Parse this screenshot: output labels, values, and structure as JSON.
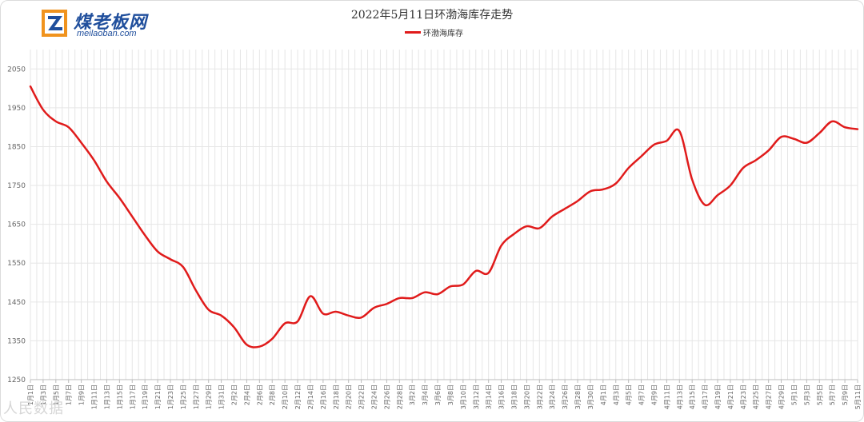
{
  "logo": {
    "name_cn": "煤老板网",
    "name_en": "meilaoban.com"
  },
  "watermark": "人民数据",
  "chart_data": {
    "type": "line",
    "title": "2022年5月11日环渤海库存走势",
    "xlabel": "",
    "ylabel": "",
    "ylim": [
      1250,
      2100
    ],
    "yticks": [
      1250,
      1350,
      1450,
      1550,
      1650,
      1750,
      1850,
      1950,
      2050
    ],
    "grid": true,
    "legend_position": "top-center",
    "series_color": "#e01b1b",
    "categories": [
      "1月1日",
      "1月3日",
      "1月5日",
      "1月7日",
      "1月9日",
      "1月11日",
      "1月13日",
      "1月15日",
      "1月17日",
      "1月19日",
      "1月21日",
      "1月23日",
      "1月25日",
      "1月27日",
      "1月29日",
      "1月31日",
      "2月2日",
      "2月4日",
      "2月6日",
      "2月8日",
      "2月10日",
      "2月12日",
      "2月14日",
      "2月16日",
      "2月18日",
      "2月20日",
      "2月22日",
      "2月24日",
      "2月26日",
      "2月28日",
      "3月2日",
      "3月4日",
      "3月6日",
      "3月8日",
      "3月10日",
      "3月12日",
      "3月14日",
      "3月16日",
      "3月18日",
      "3月20日",
      "3月22日",
      "3月24日",
      "3月26日",
      "3月28日",
      "3月30日",
      "4月1日",
      "4月3日",
      "4月5日",
      "4月7日",
      "4月9日",
      "4月11日",
      "4月13日",
      "4月15日",
      "4月17日",
      "4月19日",
      "4月21日",
      "4月23日",
      "4月25日",
      "4月27日",
      "4月29日",
      "5月1日",
      "5月3日",
      "5月5日",
      "5月7日",
      "5月9日",
      "5月11日"
    ],
    "series": [
      {
        "name": "环渤海库存",
        "values": [
          2005,
          1945,
          1915,
          1900,
          1860,
          1815,
          1760,
          1718,
          1670,
          1622,
          1580,
          1560,
          1540,
          1480,
          1430,
          1415,
          1385,
          1340,
          1335,
          1355,
          1395,
          1400,
          1465,
          1420,
          1425,
          1415,
          1410,
          1435,
          1445,
          1460,
          1460,
          1475,
          1470,
          1490,
          1495,
          1530,
          1525,
          1595,
          1625,
          1645,
          1640,
          1670,
          1690,
          1710,
          1735,
          1740,
          1755,
          1795,
          1825,
          1855,
          1865,
          1890,
          1765,
          1700,
          1725,
          1750,
          1795,
          1815,
          1840,
          1875,
          1870,
          1860,
          1885,
          1915,
          1900,
          1895
        ]
      }
    ]
  }
}
